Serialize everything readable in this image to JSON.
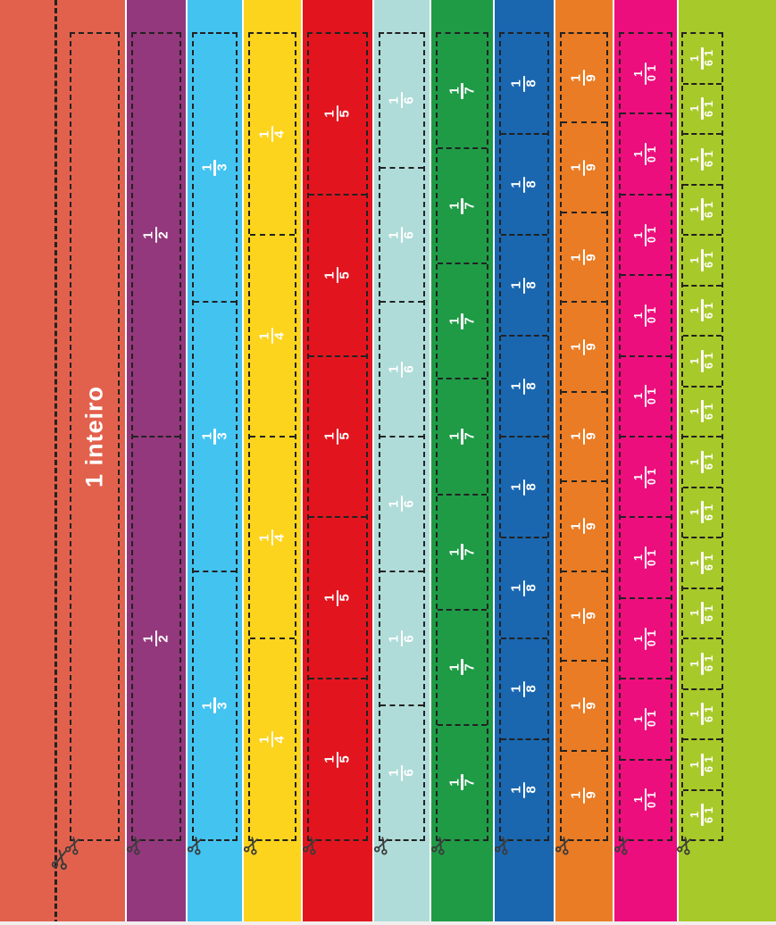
{
  "sheet": {
    "whole_label": "1 inteiro",
    "strips": [
      {
        "name": "1-inteiro",
        "label": "1 inteiro",
        "parts": 1,
        "numerator": "1",
        "denominator": null,
        "color": "#e2614d"
      },
      {
        "name": "metade",
        "label": "1/2",
        "parts": 2,
        "numerator": "1",
        "denominator": "2",
        "color": "#93387c"
      },
      {
        "name": "terco",
        "label": "1/3",
        "parts": 3,
        "numerator": "1",
        "denominator": "3",
        "color": "#43c3f0"
      },
      {
        "name": "quarto",
        "label": "1/4",
        "parts": 4,
        "numerator": "1",
        "denominator": "4",
        "color": "#fcd41d"
      },
      {
        "name": "quinto",
        "label": "1/5",
        "parts": 5,
        "numerator": "1",
        "denominator": "5",
        "color": "#e2151f"
      },
      {
        "name": "sexto",
        "label": "1/6",
        "parts": 6,
        "numerator": "1",
        "denominator": "6",
        "color": "#afdcd8"
      },
      {
        "name": "setimo",
        "label": "1/7",
        "parts": 7,
        "numerator": "1",
        "denominator": "7",
        "color": "#1f9b46"
      },
      {
        "name": "oitavo",
        "label": "1/8",
        "parts": 8,
        "numerator": "1",
        "denominator": "8",
        "color": "#1a67b0"
      },
      {
        "name": "nono",
        "label": "1/9",
        "parts": 9,
        "numerator": "1",
        "denominator": "9",
        "color": "#e97c25"
      },
      {
        "name": "decimo",
        "label": "1/10",
        "parts": 10,
        "numerator": "1",
        "denominator": "10",
        "color": "#ec0e7d"
      },
      {
        "name": "dezesseis-avos",
        "label": "1/16",
        "parts": 16,
        "numerator": "1",
        "denominator": "16",
        "color": "#a8c92a"
      }
    ],
    "icons": {
      "scissors": "scissors"
    },
    "cut_line_color": "#222222",
    "label_text_color": "#ffffff"
  }
}
